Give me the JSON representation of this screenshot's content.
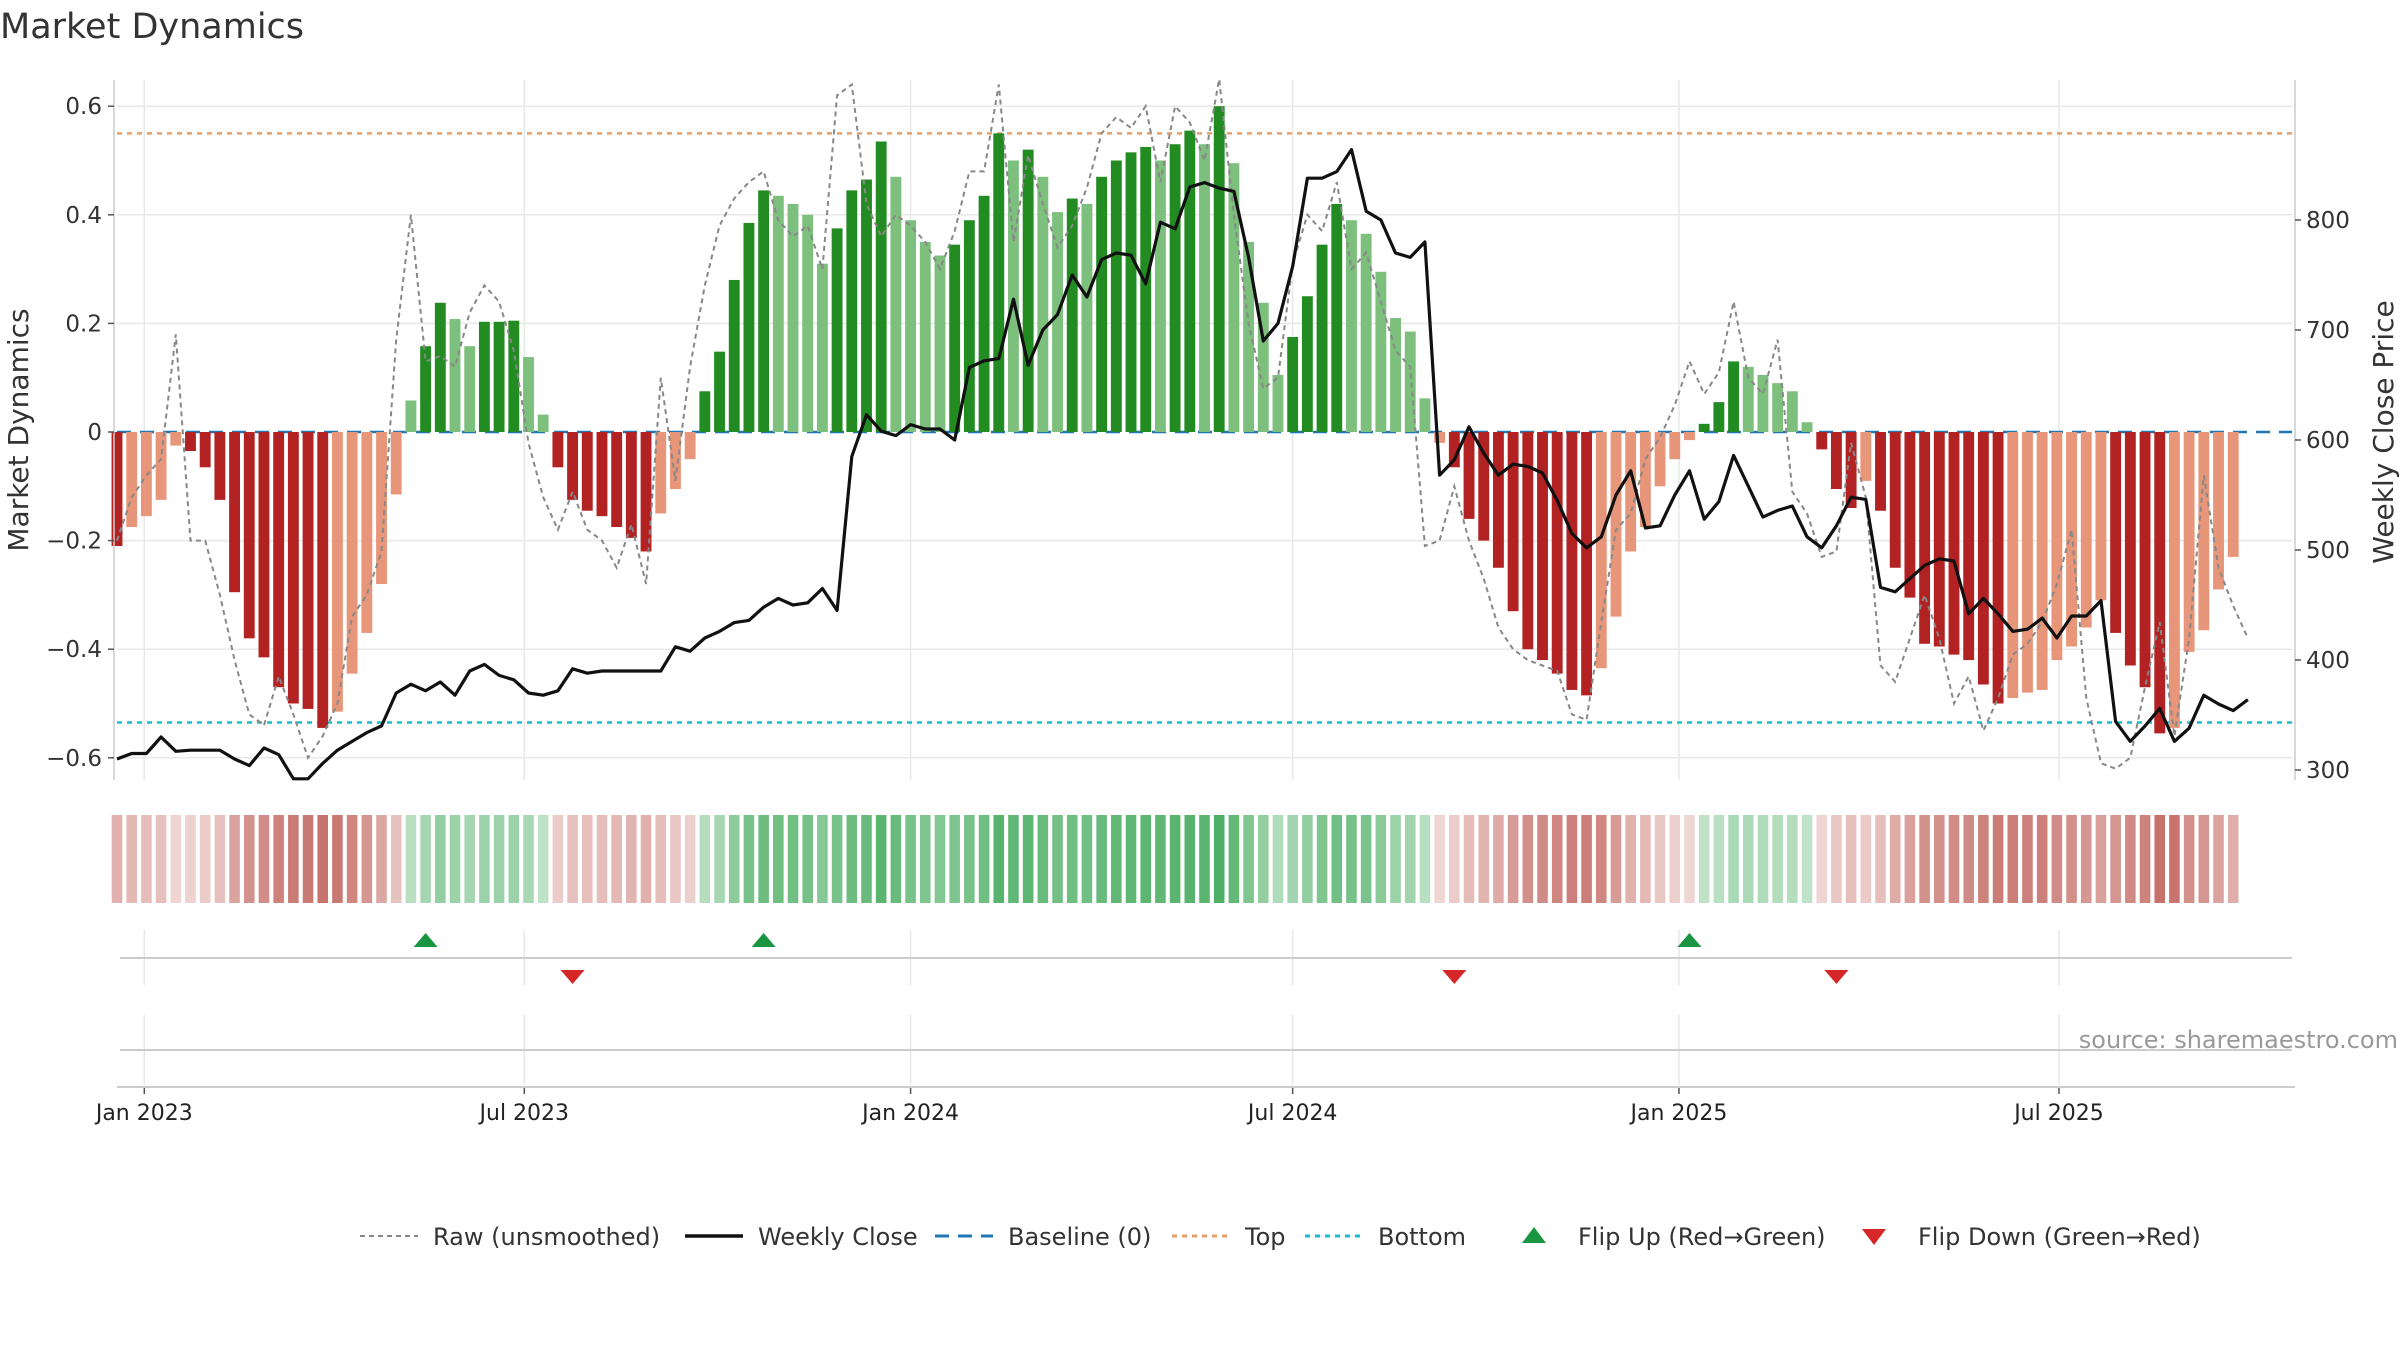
{
  "chart_data": {
    "type": "bar",
    "title": "Market Dynamics",
    "ylabel_left": "Market Dynamics",
    "ylabel_right": "Weekly Close Price",
    "source": "source: sharemaestro.com",
    "ylim_left": [
      -0.64,
      0.65
    ],
    "ylim_right": [
      250,
      880
    ],
    "yticks_left": [
      {
        "v": 0.6,
        "label": "0.6"
      },
      {
        "v": 0.4,
        "label": "0.4"
      },
      {
        "v": 0.2,
        "label": "0.2"
      },
      {
        "v": 0,
        "label": "0"
      },
      {
        "v": -0.2,
        "label": "−0.2"
      },
      {
        "v": -0.4,
        "label": "−0.4"
      },
      {
        "v": -0.6,
        "label": "−0.6"
      }
    ],
    "yticks_right": [
      {
        "v": 800,
        "label": "800"
      },
      {
        "v": 700,
        "label": "700"
      },
      {
        "v": 600,
        "label": "600"
      },
      {
        "v": 500,
        "label": "500"
      },
      {
        "v": 400,
        "label": "400"
      },
      {
        "v": 300,
        "label": "300"
      }
    ],
    "x_start": "2022-12-19",
    "x_end": "2025-10-20",
    "xticks": [
      {
        "date": "2023-01-01",
        "label": "Jan 2023"
      },
      {
        "date": "2023-07-01",
        "label": "Jul 2023"
      },
      {
        "date": "2024-01-01",
        "label": "Jan 2024"
      },
      {
        "date": "2024-07-01",
        "label": "Jul 2024"
      },
      {
        "date": "2025-01-01",
        "label": "Jan 2025"
      },
      {
        "date": "2025-07-01",
        "label": "Jul 2025"
      }
    ],
    "reference_lines": {
      "top": 0.55,
      "bottom": -0.535,
      "baseline": 0
    },
    "first_week": "2022-12-19",
    "week_step_days": 7,
    "series": [
      {
        "name": "Market Dynamics",
        "type": "bar",
        "values": [
          -0.21,
          -0.175,
          -0.155,
          -0.125,
          -0.025,
          -0.035,
          -0.065,
          -0.125,
          -0.295,
          -0.38,
          -0.415,
          -0.47,
          -0.5,
          -0.51,
          -0.545,
          -0.515,
          -0.445,
          -0.37,
          -0.28,
          -0.115,
          0.058,
          0.158,
          0.238,
          0.208,
          0.158,
          0.203,
          0.203,
          0.205,
          0.138,
          0.032,
          -0.065,
          -0.125,
          -0.145,
          -0.155,
          -0.175,
          -0.195,
          -0.22,
          -0.15,
          -0.105,
          -0.05,
          0.075,
          0.148,
          0.28,
          0.385,
          0.445,
          0.435,
          0.42,
          0.4,
          0.31,
          0.375,
          0.445,
          0.465,
          0.535,
          0.47,
          0.39,
          0.35,
          0.325,
          0.345,
          0.39,
          0.435,
          0.55,
          0.5,
          0.52,
          0.47,
          0.405,
          0.43,
          0.42,
          0.47,
          0.5,
          0.515,
          0.525,
          0.5,
          0.53,
          0.555,
          0.53,
          0.6,
          0.495,
          0.35,
          0.238,
          0.105,
          0.175,
          0.25,
          0.345,
          0.42,
          0.39,
          0.365,
          0.295,
          0.21,
          0.185,
          0.062,
          -0.02,
          -0.065,
          -0.16,
          -0.2,
          -0.25,
          -0.33,
          -0.4,
          -0.42,
          -0.445,
          -0.475,
          -0.485,
          -0.435,
          -0.34,
          -0.22,
          -0.175,
          -0.1,
          -0.05,
          -0.015,
          0.015,
          0.055,
          0.13,
          0.12,
          0.105,
          0.09,
          0.075,
          0.018,
          -0.032,
          -0.105,
          -0.14,
          -0.09,
          -0.145,
          -0.25,
          -0.305,
          -0.39,
          -0.395,
          -0.41,
          -0.42,
          -0.465,
          -0.5,
          -0.49,
          -0.48,
          -0.475,
          -0.42,
          -0.395,
          -0.36,
          -0.31,
          -0.37,
          -0.43,
          -0.47,
          -0.555,
          -0.545,
          -0.405,
          -0.365,
          -0.29,
          -0.23
        ]
      },
      {
        "name": "Raw (unsmoothed)",
        "type": "line",
        "values": [
          -0.2,
          -0.12,
          -0.08,
          -0.05,
          0.18,
          -0.2,
          -0.2,
          -0.3,
          -0.42,
          -0.52,
          -0.54,
          -0.45,
          -0.52,
          -0.6,
          -0.56,
          -0.5,
          -0.34,
          -0.3,
          -0.22,
          0.17,
          0.4,
          0.13,
          0.14,
          0.12,
          0.22,
          0.27,
          0.24,
          0.15,
          -0.02,
          -0.12,
          -0.18,
          -0.11,
          -0.18,
          -0.2,
          -0.25,
          -0.17,
          -0.28,
          0.1,
          -0.09,
          0.12,
          0.27,
          0.38,
          0.43,
          0.46,
          0.48,
          0.39,
          0.36,
          0.38,
          0.3,
          0.62,
          0.64,
          0.42,
          0.36,
          0.4,
          0.38,
          0.35,
          0.3,
          0.37,
          0.48,
          0.48,
          0.64,
          0.35,
          0.51,
          0.42,
          0.34,
          0.38,
          0.45,
          0.55,
          0.58,
          0.56,
          0.6,
          0.46,
          0.6,
          0.57,
          0.5,
          0.65,
          0.4,
          0.2,
          0.08,
          0.1,
          0.31,
          0.4,
          0.37,
          0.46,
          0.3,
          0.33,
          0.24,
          0.15,
          0.12,
          -0.21,
          -0.2,
          -0.1,
          -0.2,
          -0.27,
          -0.36,
          -0.4,
          -0.42,
          -0.43,
          -0.44,
          -0.52,
          -0.53,
          -0.35,
          -0.18,
          -0.15,
          -0.05,
          -0.01,
          0.05,
          0.13,
          0.07,
          0.11,
          0.24,
          0.1,
          0.07,
          0.17,
          -0.11,
          -0.15,
          -0.23,
          -0.22,
          -0.02,
          -0.12,
          -0.43,
          -0.46,
          -0.38,
          -0.3,
          -0.38,
          -0.5,
          -0.45,
          -0.55,
          -0.49,
          -0.41,
          -0.39,
          -0.35,
          -0.28,
          -0.18,
          -0.49,
          -0.61,
          -0.62,
          -0.6,
          -0.47,
          -0.35,
          -0.56,
          -0.38,
          -0.08,
          -0.25,
          -0.32,
          -0.38
        ]
      },
      {
        "name": "Weekly Close",
        "type": "line",
        "axis": "right",
        "values": [
          310,
          315,
          315,
          330,
          317,
          318,
          318,
          318,
          310,
          304,
          320,
          314,
          292,
          292,
          306,
          318,
          326,
          334,
          340,
          370,
          378,
          372,
          380,
          368,
          390,
          396,
          386,
          382,
          370,
          368,
          372,
          392,
          388,
          390,
          390,
          390,
          390,
          390,
          412,
          408,
          420,
          426,
          434,
          436,
          448,
          456,
          450,
          452,
          465,
          445,
          585,
          623,
          608,
          604,
          614,
          610,
          610,
          600,
          666,
          672,
          674,
          728,
          668,
          700,
          714,
          750,
          730,
          764,
          770,
          768,
          742,
          798,
          792,
          830,
          834,
          829,
          826,
          766,
          690,
          706,
          758,
          838,
          838,
          844,
          864,
          808,
          800,
          770,
          766,
          780,
          568,
          582,
          612,
          588,
          568,
          578,
          576,
          570,
          545,
          515,
          502,
          512,
          550,
          572,
          520,
          522,
          550,
          572,
          528,
          544,
          586,
          558,
          530,
          536,
          540,
          512,
          502,
          522,
          548,
          546,
          466,
          462,
          474,
          486,
          492,
          490,
          442,
          456,
          442,
          426,
          428,
          438,
          420,
          440,
          440,
          454,
          344,
          326,
          340,
          356,
          326,
          338,
          368,
          360,
          354,
          364
        ]
      }
    ],
    "flip_up_dates": [
      "2023-05-15",
      "2023-10-23",
      "2025-01-06"
    ],
    "flip_down_dates": [
      "2023-07-24",
      "2024-09-16",
      "2025-03-17"
    ],
    "legend_position": "bottom",
    "legend": [
      {
        "key": "raw",
        "label": "Raw (unsmoothed)"
      },
      {
        "key": "close",
        "label": "Weekly Close"
      },
      {
        "key": "baseline",
        "label": "Baseline (0)"
      },
      {
        "key": "top",
        "label": "Top"
      },
      {
        "key": "bottom",
        "label": "Bottom"
      },
      {
        "key": "flipup",
        "label": "Flip Up (Red→Green)"
      },
      {
        "key": "flipdown",
        "label": "Flip Down (Green→Red)"
      }
    ],
    "colors": {
      "strong_red": "#b22222",
      "weak_red": "#e8967a",
      "strong_green": "#228b22",
      "weak_green": "#7dbf7d",
      "close_line": "#111111",
      "raw_line": "#888888",
      "baseline": "#1f77b4",
      "top_line": "#e6a06a",
      "bottom_line": "#17becf",
      "flip_up": "#1a9641",
      "flip_down": "#d62728",
      "grid": "#e8e8e8"
    }
  }
}
